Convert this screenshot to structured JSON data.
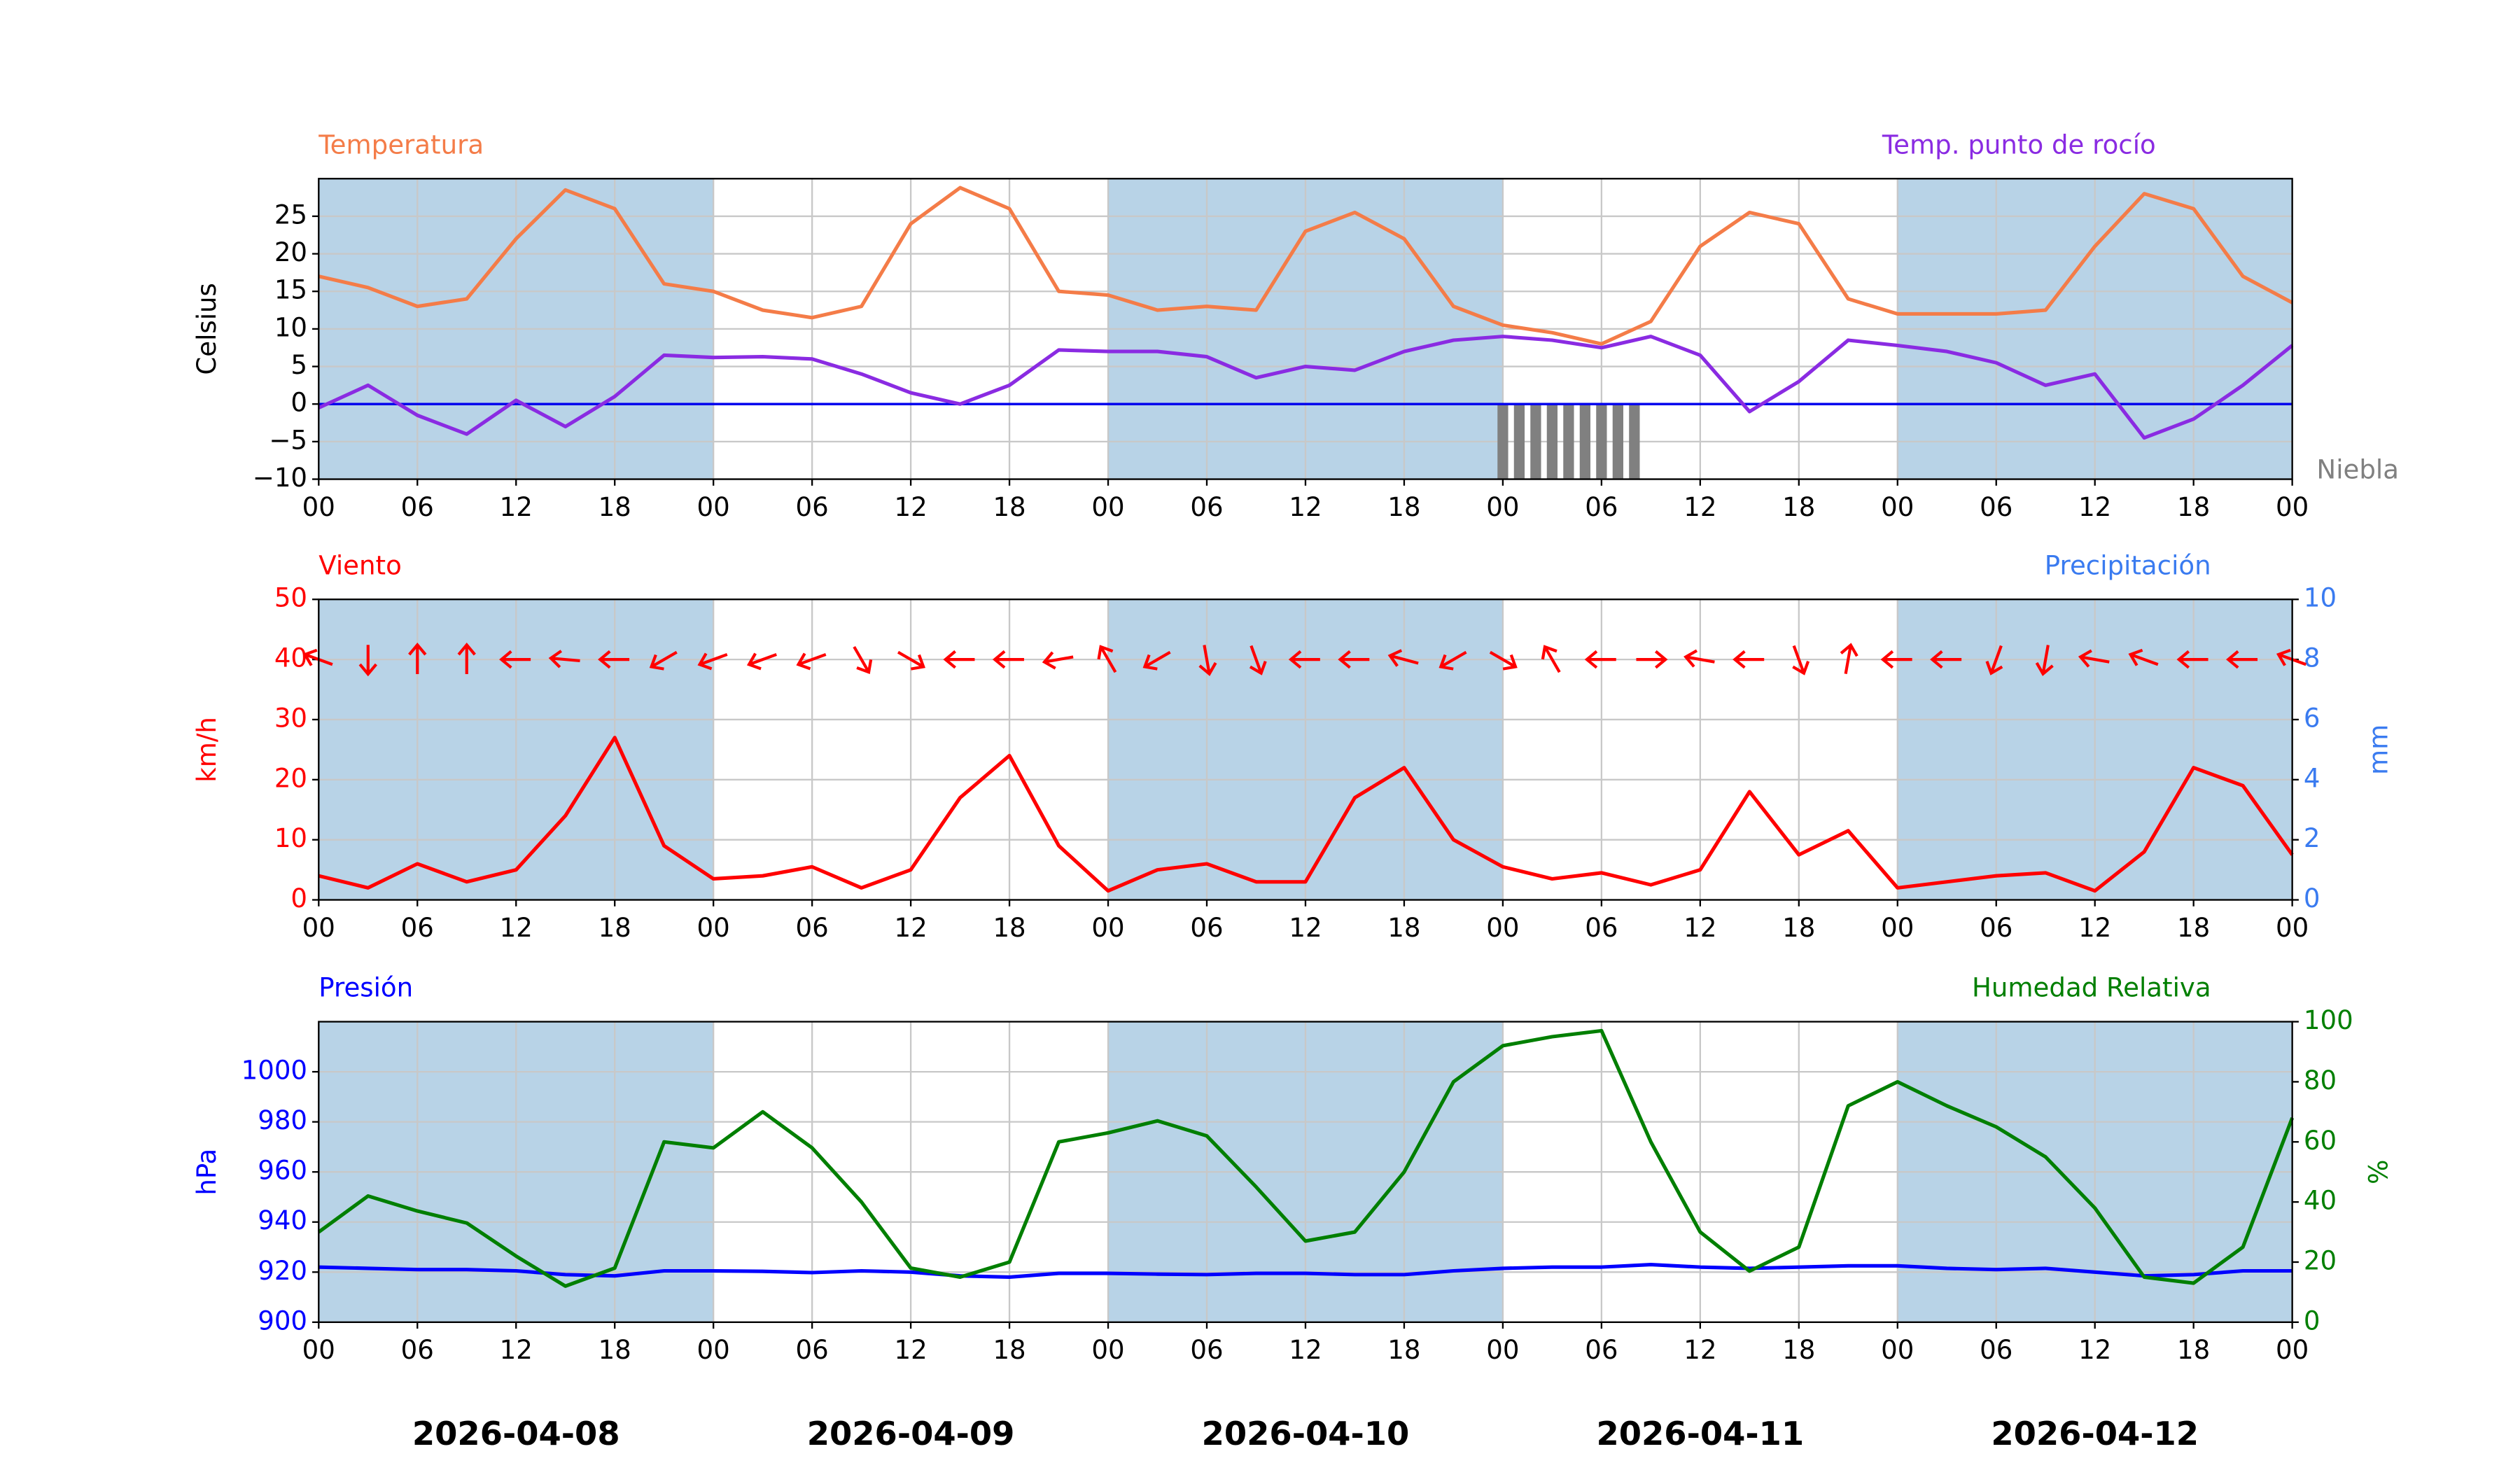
{
  "x_axis": {
    "x": [
      0,
      3,
      6,
      9,
      12,
      15,
      18,
      21,
      24,
      27,
      30,
      33,
      36,
      39,
      42,
      45,
      48,
      51,
      54,
      57,
      60,
      63,
      66,
      69,
      72,
      75,
      78,
      81,
      84,
      87,
      90,
      93,
      96,
      99,
      102,
      105,
      108,
      111,
      114,
      117,
      120
    ],
    "xlim": [
      0,
      120
    ],
    "xticks": [
      {
        "value": 0,
        "label": "00"
      },
      {
        "value": 6,
        "label": "06"
      },
      12,
      18,
      {
        "value": 24,
        "label": "00"
      },
      {
        "value": 30,
        "label": "06"
      },
      {
        "value": 36,
        "label": "12"
      },
      {
        "value": 42,
        "label": "18"
      },
      {
        "value": 48,
        "label": "00"
      },
      {
        "value": 54,
        "label": "06"
      },
      {
        "value": 60,
        "label": "12"
      },
      {
        "value": 66,
        "label": "18"
      },
      {
        "value": 72,
        "label": "00"
      },
      {
        "value": 78,
        "label": "06"
      },
      {
        "value": 84,
        "label": "12"
      },
      {
        "value": 90,
        "label": "18"
      },
      {
        "value": 96,
        "label": "00"
      },
      {
        "value": 102,
        "label": "06"
      },
      {
        "value": 108,
        "label": "12"
      },
      {
        "value": 114,
        "label": "18"
      },
      {
        "value": 120,
        "label": "00"
      }
    ],
    "days": [
      "2026-04-08",
      "2026-04-09",
      "2026-04-10",
      "2026-04-11",
      "2026-04-12"
    ]
  },
  "chart_data": [
    {
      "type": "line",
      "title": "Temperatura",
      "right_title": "Temp. punto de rocío",
      "ylabel": "Celsius",
      "ytick_color": "#000000",
      "ylim": [
        -10,
        30
      ],
      "yticks": [
        {
          "value": -10,
          "label": "−10"
        },
        {
          "value": -5,
          "label": "−5"
        },
        0,
        5,
        10,
        15,
        20,
        25
      ],
      "hline": 0,
      "hline_color": "#0000ee",
      "grid": true,
      "series": [
        {
          "name": "Temperatura",
          "color": "#f47c48",
          "values": [
            17,
            15.5,
            13,
            14,
            22,
            28.5,
            26,
            16,
            15,
            12.5,
            11.5,
            13,
            24,
            28.8,
            26,
            15,
            14.5,
            12.5,
            13,
            12.5,
            23,
            25.5,
            22,
            13,
            10.5,
            9.5,
            8,
            11,
            21,
            25.5,
            24,
            14,
            12,
            12,
            12,
            12.5,
            21,
            28,
            26,
            17,
            13.5
          ]
        },
        {
          "name": "Temp. punto de rocío",
          "color": "#8a2be2",
          "values": [
            -0.5,
            2.5,
            -1.5,
            -4,
            0.5,
            -3,
            1,
            6.5,
            6.2,
            6.3,
            6,
            4,
            1.5,
            0,
            2.5,
            7.2,
            7,
            7,
            6.3,
            3.5,
            5,
            4.5,
            7,
            8.5,
            9,
            8.5,
            7.5,
            9,
            6.5,
            -1,
            3,
            8.5,
            7.8,
            7,
            5.5,
            2.5,
            4,
            -4.5,
            -2,
            2.5,
            7.8
          ]
        }
      ],
      "fog": {
        "name": "Niebla",
        "color": "#808080",
        "x": [
          72,
          73,
          74,
          75,
          76,
          77,
          78,
          79,
          80
        ]
      }
    },
    {
      "type": "line",
      "title": "Viento",
      "right_title": "Precipitación",
      "ylabel": "km/h",
      "y2label": "mm",
      "ytick_color": "#ff0000",
      "y2tick_color": "#3a7bf0",
      "ylim": [
        0,
        50
      ],
      "yticks": [
        0,
        10,
        20,
        30,
        40,
        50
      ],
      "y2lim": [
        0,
        10
      ],
      "y2ticks": [
        0,
        2,
        4,
        6,
        8,
        10
      ],
      "grid": true,
      "series": [
        {
          "name": "Viento",
          "color": "#ff0000",
          "values": [
            4,
            2,
            6,
            3,
            5,
            14,
            27,
            9,
            3.5,
            4,
            5.5,
            2,
            5,
            17,
            24,
            9,
            1.5,
            5,
            6,
            3,
            3,
            17,
            22,
            10,
            5.5,
            3.5,
            4.5,
            2.5,
            5,
            18,
            7.5,
            11.5,
            2,
            3,
            4,
            4.5,
            1.5,
            8,
            22,
            19,
            7.5
          ],
          "directions": [
            290,
            180,
            0,
            0,
            270,
            275,
            270,
            240,
            250,
            250,
            250,
            150,
            120,
            270,
            270,
            260,
            330,
            240,
            170,
            160,
            270,
            270,
            285,
            240,
            120,
            330,
            270,
            90,
            280,
            270,
            160,
            10,
            270,
            270,
            200,
            190,
            280,
            290,
            270,
            270,
            290
          ]
        }
      ]
    },
    {
      "type": "line",
      "title": "Presión",
      "right_title": "Humedad Relativa",
      "ylabel": "hPa",
      "y2label": "%",
      "ytick_color": "#0000ff",
      "y2tick_color": "#007f00",
      "ylim": [
        900,
        1020
      ],
      "yticks": [
        900,
        920,
        940,
        960,
        980,
        1000
      ],
      "y2lim": [
        0,
        100
      ],
      "y2ticks": [
        0,
        20,
        40,
        60,
        80,
        100
      ],
      "grid": true,
      "series": [
        {
          "name": "Presión",
          "color": "#0000ff",
          "values": [
            922,
            921.5,
            921,
            921,
            920.5,
            919,
            918.5,
            920.5,
            920.5,
            920.3,
            919.8,
            920.5,
            920,
            918.5,
            918,
            919.5,
            919.5,
            919.2,
            919,
            919.5,
            919.5,
            919,
            919,
            920.5,
            921.5,
            922,
            922,
            923,
            922,
            921.5,
            922,
            922.5,
            922.5,
            921.5,
            921,
            921.5,
            920,
            918.5,
            919,
            920.5,
            920.5
          ]
        },
        {
          "name": "Humedad Relativa",
          "color": "#007f00",
          "axis": "y2",
          "values": [
            30,
            42,
            37,
            33,
            22,
            12,
            18,
            60,
            58,
            70,
            58,
            40,
            18,
            15,
            20,
            60,
            63,
            67,
            62,
            45,
            27,
            30,
            50,
            80,
            92,
            95,
            97,
            60,
            30,
            17,
            25,
            72,
            80,
            72,
            65,
            55,
            38,
            15,
            13,
            25,
            68
          ]
        }
      ]
    }
  ]
}
